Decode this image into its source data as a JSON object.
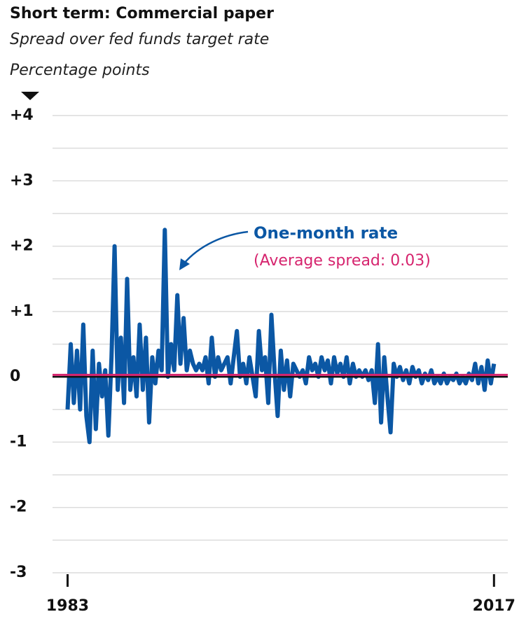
{
  "chart_data": {
    "type": "line",
    "title": "Short term: Commercial paper",
    "subtitle": "Spread over fed funds target rate",
    "y_label": "Percentage points",
    "annotation": "One-month rate",
    "average_label": "(Average spread: 0.03)",
    "average": 0.03,
    "average_color": "#d6246e",
    "xlim": [
      1981.8,
      2018.1
    ],
    "xticks": [
      1983,
      2017
    ],
    "ylim": [
      -3,
      4
    ],
    "yticks": [
      {
        "value": 4,
        "label": "+4"
      },
      {
        "value": 3,
        "label": "+3"
      },
      {
        "value": 2,
        "label": "+2"
      },
      {
        "value": 1,
        "label": "+1"
      },
      0,
      -1,
      -2,
      -3
    ],
    "minor_yticks": [
      3.5,
      2.5,
      1.5,
      0.5,
      -0.5,
      -1.5,
      -2.5
    ],
    "grid": true,
    "series": [
      {
        "name": "One-month rate",
        "color": "#0b57a4",
        "x": [
          1983,
          1983.25,
          1983.5,
          1983.75,
          1984,
          1984.25,
          1984.5,
          1984.75,
          1985,
          1985.25,
          1985.5,
          1985.75,
          1986,
          1986.25,
          1986.5,
          1986.75,
          1987,
          1987.25,
          1987.5,
          1987.75,
          1988,
          1988.25,
          1988.5,
          1988.75,
          1989,
          1989.25,
          1989.5,
          1989.75,
          1990,
          1990.25,
          1990.5,
          1990.75,
          1991,
          1991.25,
          1991.5,
          1991.75,
          1992,
          1992.25,
          1992.5,
          1992.75,
          1993,
          1993.25,
          1993.5,
          1993.75,
          1994,
          1994.25,
          1994.5,
          1994.75,
          1995,
          1995.25,
          1995.5,
          1995.75,
          1996,
          1996.25,
          1996.5,
          1996.75,
          1997,
          1997.25,
          1997.5,
          1997.75,
          1998,
          1998.25,
          1998.5,
          1998.75,
          1999,
          1999.25,
          1999.5,
          1999.75,
          2000,
          2000.25,
          2000.5,
          2000.75,
          2001,
          2001.25,
          2001.5,
          2001.75,
          2002,
          2002.25,
          2002.5,
          2002.75,
          2003,
          2003.25,
          2003.5,
          2003.75,
          2004,
          2004.25,
          2004.5,
          2004.75,
          2005,
          2005.25,
          2005.5,
          2005.75,
          2006,
          2006.25,
          2006.5,
          2006.75,
          2007,
          2007.25,
          2007.5,
          2007.75,
          2008,
          2008.25,
          2008.5,
          2008.75,
          2009,
          2009.25,
          2009.5,
          2009.75,
          2010,
          2010.25,
          2010.5,
          2010.75,
          2011,
          2011.25,
          2011.5,
          2011.75,
          2012,
          2012.25,
          2012.5,
          2012.75,
          2013,
          2013.25,
          2013.5,
          2013.75,
          2014,
          2014.25,
          2014.5,
          2014.75,
          2015,
          2015.25,
          2015.5,
          2015.75,
          2016,
          2016.25,
          2016.5,
          2016.75,
          2017
        ],
        "values": [
          -0.5,
          0.5,
          -0.4,
          0.4,
          -0.5,
          0.8,
          -0.6,
          -1.0,
          0.4,
          -0.8,
          0.2,
          -0.3,
          0.1,
          -0.9,
          0.3,
          2.0,
          -0.2,
          0.6,
          -0.4,
          1.5,
          -0.2,
          0.3,
          -0.3,
          0.8,
          -0.2,
          0.6,
          -0.7,
          0.3,
          -0.1,
          0.4,
          0.1,
          2.25,
          0.0,
          0.5,
          0.1,
          1.25,
          0.2,
          0.9,
          0.1,
          0.4,
          0.2,
          0.1,
          0.2,
          0.1,
          0.3,
          -0.1,
          0.6,
          0.0,
          0.3,
          0.1,
          0.2,
          0.3,
          -0.1,
          0.3,
          0.7,
          0.0,
          0.2,
          -0.1,
          0.3,
          0.0,
          -0.3,
          0.7,
          0.1,
          0.3,
          -0.4,
          0.95,
          0.1,
          -0.6,
          0.4,
          -0.2,
          0.25,
          -0.3,
          0.2,
          0.1,
          0.0,
          0.1,
          -0.1,
          0.3,
          0.1,
          0.2,
          0.0,
          0.3,
          0.1,
          0.25,
          -0.1,
          0.3,
          0.05,
          0.2,
          0.0,
          0.3,
          -0.1,
          0.2,
          0.0,
          0.1,
          0.0,
          0.1,
          -0.05,
          0.1,
          -0.4,
          0.5,
          -0.7,
          0.3,
          -0.3,
          -0.85,
          0.2,
          0.0,
          0.15,
          -0.05,
          0.1,
          -0.1,
          0.15,
          0.0,
          0.1,
          -0.1,
          0.05,
          -0.05,
          0.1,
          -0.1,
          0.0,
          -0.1,
          0.05,
          -0.1,
          0.0,
          -0.05,
          0.05,
          -0.1,
          0.0,
          -0.1,
          0.05,
          -0.05,
          0.2,
          -0.1,
          0.15,
          -0.2,
          0.25,
          -0.1,
          0.2
        ]
      }
    ]
  }
}
